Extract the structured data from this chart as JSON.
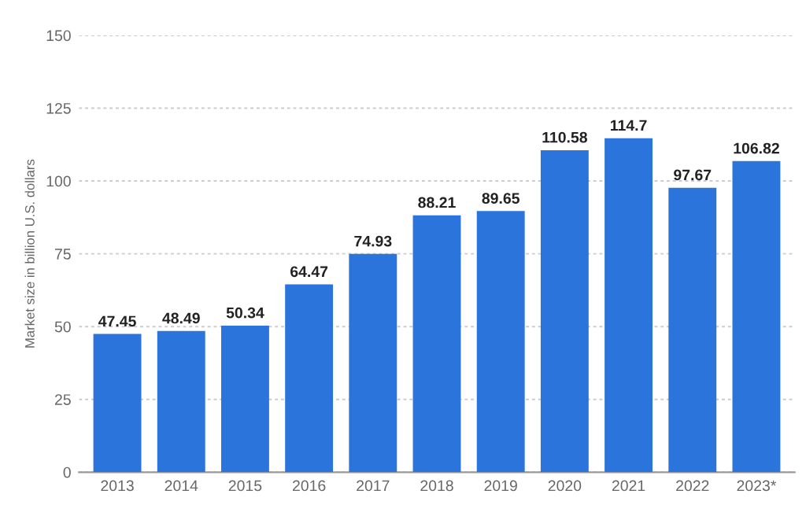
{
  "chart_data": {
    "type": "bar",
    "ylabel": "Market size in billion U.S. dollars",
    "categories": [
      "2013",
      "2014",
      "2015",
      "2016",
      "2017",
      "2018",
      "2019",
      "2020",
      "2021",
      "2022",
      "2023*"
    ],
    "values": [
      47.45,
      48.49,
      50.34,
      64.47,
      74.93,
      88.21,
      89.65,
      110.58,
      114.7,
      97.67,
      106.82
    ],
    "value_labels": [
      "47.45",
      "48.49",
      "50.34",
      "64.47",
      "74.93",
      "88.21",
      "89.65",
      "110.58",
      "114.7",
      "97.67",
      "106.82"
    ],
    "color": "#2a74dc",
    "ylim": [
      0,
      150
    ],
    "yticks": [
      0,
      25,
      50,
      75,
      100,
      125,
      150
    ],
    "grid": "y"
  }
}
